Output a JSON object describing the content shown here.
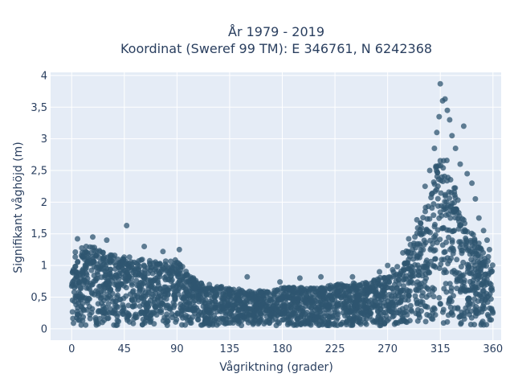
{
  "chart_data": {
    "type": "scatter",
    "title_lines": [
      "År 1979 - 2019",
      "Koordinat (Sweref 99 TM): E 346761, N 6242368"
    ],
    "xlabel": "Vågriktning (grader)",
    "ylabel": "Signifikant våghöjd (m)",
    "xlim": [
      -18,
      367
    ],
    "ylim": [
      -0.18,
      4.05
    ],
    "x_ticks": [
      0,
      45,
      90,
      135,
      180,
      225,
      270,
      315,
      360
    ],
    "x_tick_labels": [
      "0",
      "45",
      "90",
      "135",
      "180",
      "225",
      "270",
      "315",
      "360"
    ],
    "y_ticks": [
      0,
      0.5,
      1,
      1.5,
      2,
      2.5,
      3,
      3.5,
      4
    ],
    "y_tick_labels": [
      "0",
      "0,5",
      "1",
      "1,5",
      "2",
      "2,5",
      "3",
      "3,5",
      "4"
    ],
    "grid": true,
    "legend": "none",
    "marker_color": "#2f5670",
    "plot_bg": "#e5ecf6",
    "grid_color": "#ffffff",
    "envelope": {
      "direction": [
        0,
        10,
        20,
        30,
        45,
        60,
        75,
        85,
        90,
        100,
        110,
        120,
        135,
        150,
        165,
        180,
        195,
        210,
        225,
        240,
        255,
        270,
        280,
        290,
        300,
        305,
        310,
        315,
        320,
        325,
        330,
        335,
        340,
        345,
        350,
        355,
        360
      ],
      "upper_hs": [
        1.25,
        1.3,
        1.3,
        1.2,
        1.15,
        1.1,
        1.05,
        1.1,
        1.1,
        0.85,
        0.75,
        0.7,
        0.65,
        0.6,
        0.6,
        0.65,
        0.65,
        0.65,
        0.7,
        0.72,
        0.75,
        0.85,
        1.05,
        1.35,
        1.8,
        2.1,
        2.5,
        2.8,
        2.7,
        2.4,
        2.1,
        1.8,
        1.6,
        1.45,
        1.3,
        1.2,
        1.05
      ],
      "lower_hs": 0.05
    },
    "outliers": [
      {
        "x": 5,
        "y": 1.42
      },
      {
        "x": 18,
        "y": 1.45
      },
      {
        "x": 30,
        "y": 1.4
      },
      {
        "x": 47,
        "y": 1.63
      },
      {
        "x": 62,
        "y": 1.3
      },
      {
        "x": 78,
        "y": 1.22
      },
      {
        "x": 92,
        "y": 1.25
      },
      {
        "x": 150,
        "y": 0.82
      },
      {
        "x": 178,
        "y": 0.74
      },
      {
        "x": 195,
        "y": 0.8
      },
      {
        "x": 213,
        "y": 0.82
      },
      {
        "x": 240,
        "y": 0.82
      },
      {
        "x": 263,
        "y": 0.9
      },
      {
        "x": 270,
        "y": 1.0
      },
      {
        "x": 283,
        "y": 1.2
      },
      {
        "x": 288,
        "y": 1.42
      },
      {
        "x": 295,
        "y": 1.72
      },
      {
        "x": 302,
        "y": 2.25
      },
      {
        "x": 306,
        "y": 2.5
      },
      {
        "x": 310,
        "y": 2.85
      },
      {
        "x": 312,
        "y": 3.1
      },
      {
        "x": 314,
        "y": 3.35
      },
      {
        "x": 315,
        "y": 3.87
      },
      {
        "x": 317,
        "y": 3.6
      },
      {
        "x": 319,
        "y": 3.63
      },
      {
        "x": 321,
        "y": 3.45
      },
      {
        "x": 323,
        "y": 3.3
      },
      {
        "x": 325,
        "y": 3.05
      },
      {
        "x": 328,
        "y": 2.85
      },
      {
        "x": 332,
        "y": 2.6
      },
      {
        "x": 335,
        "y": 3.2
      },
      {
        "x": 338,
        "y": 2.45
      },
      {
        "x": 342,
        "y": 2.3
      },
      {
        "x": 345,
        "y": 2.05
      },
      {
        "x": 348,
        "y": 1.75
      },
      {
        "x": 352,
        "y": 1.55
      },
      {
        "x": 355,
        "y": 1.4
      },
      {
        "x": 357,
        "y": 1.25
      }
    ],
    "point_count": 2600
  }
}
